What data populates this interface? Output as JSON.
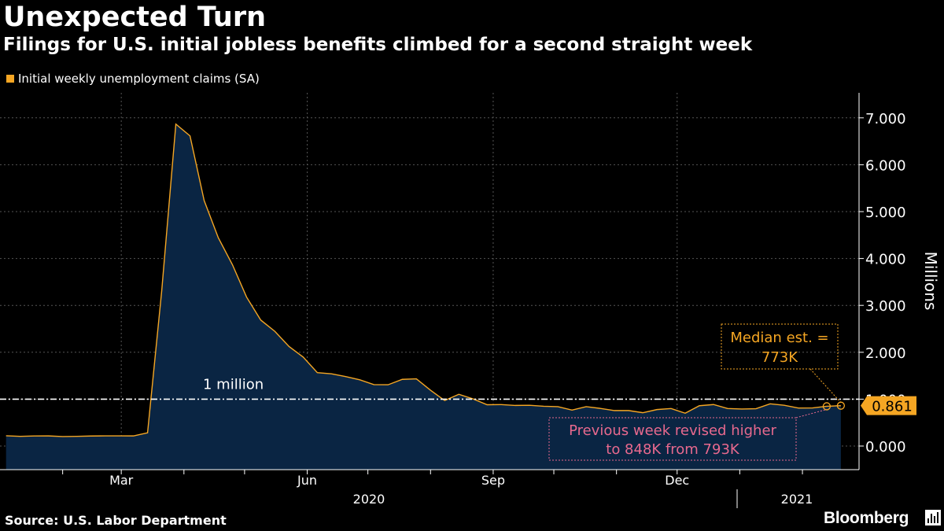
{
  "title": "Unexpected Turn",
  "subtitle": "Filings for U.S. initial jobless benefits climbed for a second straight week",
  "source": "Source: U.S. Labor Department",
  "brand": "Bloomberg",
  "colors": {
    "line": "#f5a623",
    "area": "#0a2543",
    "grid": "#555555",
    "ref": "#ffffff",
    "median_box": "#f5a623",
    "revised_box": "#e8698e"
  },
  "chart_data": {
    "type": "area",
    "series": [
      {
        "name": "Initial weekly unemployment claims (SA)"
      }
    ],
    "ylabel": "Millions",
    "ylim": [
      -0.5,
      7.5
    ],
    "yticks": [
      "0.000",
      "1.000",
      "2.000",
      "3.000",
      "4.000",
      "5.000",
      "6.000",
      "7.000"
    ],
    "ytick_values": [
      0,
      1,
      2,
      3,
      4,
      5,
      6,
      7
    ],
    "x_month_labels": [
      "Mar",
      "Jun",
      "Sep",
      "Dec"
    ],
    "x_year_labels": [
      "2020",
      "2021"
    ],
    "reference_line": {
      "value": 1.0,
      "label": "1 million"
    },
    "last_value_label": "0.861",
    "median_annotation": [
      "Median est. =",
      "773K"
    ],
    "revised_annotation": [
      "Previous week revised higher",
      "to 848K from 793K"
    ],
    "points": [
      [
        "2020-01-04",
        0.22
      ],
      [
        "2020-01-11",
        0.207
      ],
      [
        "2020-01-18",
        0.215
      ],
      [
        "2020-01-25",
        0.216
      ],
      [
        "2020-02-01",
        0.203
      ],
      [
        "2020-02-08",
        0.206
      ],
      [
        "2020-02-15",
        0.214
      ],
      [
        "2020-02-22",
        0.217
      ],
      [
        "2020-02-29",
        0.217
      ],
      [
        "2020-03-07",
        0.216
      ],
      [
        "2020-03-14",
        0.282
      ],
      [
        "2020-03-21",
        3.307
      ],
      [
        "2020-03-28",
        6.867
      ],
      [
        "2020-04-04",
        6.615
      ],
      [
        "2020-04-11",
        5.237
      ],
      [
        "2020-04-18",
        4.442
      ],
      [
        "2020-04-25",
        3.867
      ],
      [
        "2020-05-02",
        3.176
      ],
      [
        "2020-05-09",
        2.687
      ],
      [
        "2020-05-16",
        2.446
      ],
      [
        "2020-05-23",
        2.123
      ],
      [
        "2020-05-30",
        1.897
      ],
      [
        "2020-06-06",
        1.566
      ],
      [
        "2020-06-13",
        1.54
      ],
      [
        "2020-06-20",
        1.482
      ],
      [
        "2020-06-27",
        1.413
      ],
      [
        "2020-07-04",
        1.31
      ],
      [
        "2020-07-11",
        1.307
      ],
      [
        "2020-07-18",
        1.422
      ],
      [
        "2020-07-25",
        1.434
      ],
      [
        "2020-08-01",
        1.191
      ],
      [
        "2020-08-08",
        0.971
      ],
      [
        "2020-08-15",
        1.104
      ],
      [
        "2020-08-22",
        1.006
      ],
      [
        "2020-08-29",
        0.881
      ],
      [
        "2020-09-05",
        0.884
      ],
      [
        "2020-09-12",
        0.866
      ],
      [
        "2020-09-19",
        0.87
      ],
      [
        "2020-09-26",
        0.849
      ],
      [
        "2020-10-03",
        0.84
      ],
      [
        "2020-10-10",
        0.767
      ],
      [
        "2020-10-17",
        0.84
      ],
      [
        "2020-10-24",
        0.803
      ],
      [
        "2020-10-31",
        0.757
      ],
      [
        "2020-11-07",
        0.757
      ],
      [
        "2020-11-14",
        0.711
      ],
      [
        "2020-11-21",
        0.778
      ],
      [
        "2020-11-28",
        0.8
      ],
      [
        "2020-12-05",
        0.7
      ],
      [
        "2020-12-12",
        0.86
      ],
      [
        "2020-12-19",
        0.885
      ],
      [
        "2020-12-26",
        0.8
      ],
      [
        "2021-01-02",
        0.79
      ],
      [
        "2021-01-09",
        0.796
      ],
      [
        "2021-01-16",
        0.9
      ],
      [
        "2021-01-23",
        0.87
      ],
      [
        "2021-01-30",
        0.81
      ],
      [
        "2021-02-06",
        0.812
      ],
      [
        "2021-02-13",
        0.848
      ],
      [
        "2021-02-20",
        0.861
      ]
    ],
    "point_markers": [
      "2021-02-13",
      "2021-02-20"
    ]
  }
}
